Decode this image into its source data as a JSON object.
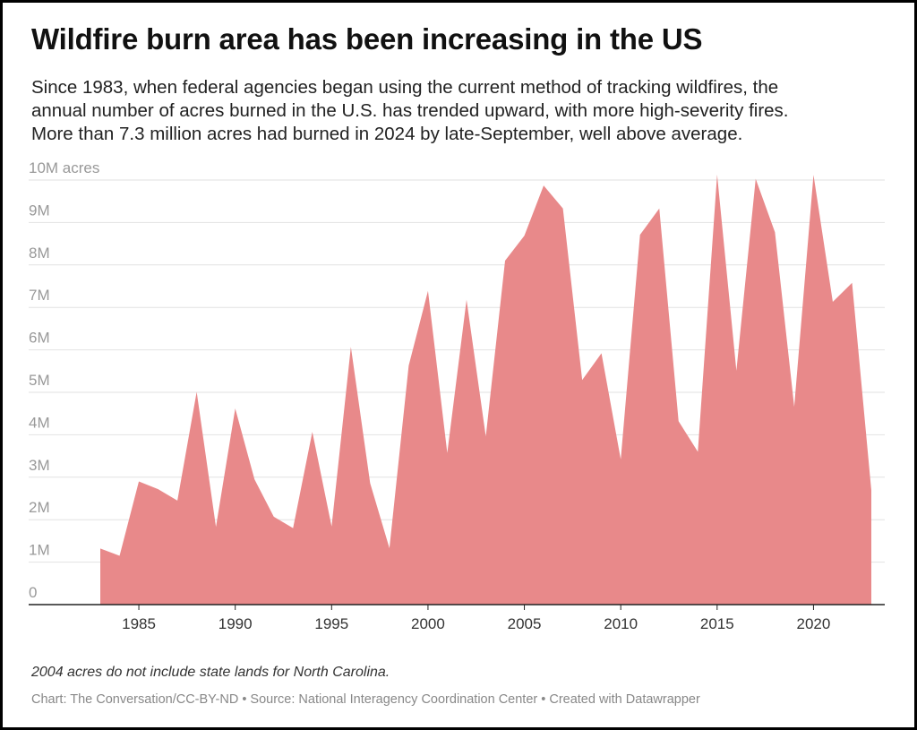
{
  "title": "Wildfire burn area has been increasing in the US",
  "subtitle_lines": [
    "Since 1983, when federal agencies began using the current method of tracking wildfires, the",
    "annual number of acres burned in the U.S. has trended upward, with more high-severity fires.",
    "More than 7.3 million acres had burned in 2024 by late-September, well above average."
  ],
  "note": "2004 acres do not include state lands for North Carolina.",
  "credit": "Chart: The Conversation/CC-BY-ND • Source: National Interagency Coordination Center • Created with Datawrapper",
  "colors": {
    "area": "#e8898a",
    "grid": "#e2e2e2",
    "axis": "#222222",
    "tick_text": "#999999",
    "x_tick_text": "#333333"
  },
  "chart_data": {
    "type": "area",
    "x": [
      1983,
      1984,
      1985,
      1986,
      1987,
      1988,
      1989,
      1990,
      1991,
      1992,
      1993,
      1994,
      1995,
      1996,
      1997,
      1998,
      1999,
      2000,
      2001,
      2002,
      2003,
      2004,
      2005,
      2006,
      2007,
      2008,
      2009,
      2010,
      2011,
      2012,
      2013,
      2014,
      2015,
      2016,
      2017,
      2018,
      2019,
      2020,
      2021,
      2022,
      2023
    ],
    "values": [
      1.32,
      1.15,
      2.9,
      2.72,
      2.45,
      5.01,
      1.83,
      4.62,
      2.95,
      2.07,
      1.8,
      4.07,
      1.84,
      6.07,
      2.86,
      1.33,
      5.63,
      7.39,
      3.57,
      7.18,
      3.96,
      8.1,
      8.69,
      9.87,
      9.33,
      5.29,
      5.92,
      3.42,
      8.71,
      9.33,
      4.32,
      3.6,
      10.13,
      5.51,
      10.03,
      8.77,
      4.66,
      10.12,
      7.13,
      7.58,
      2.69
    ],
    "value_unit": "million acres",
    "ylim": [
      0,
      10
    ],
    "xlim": [
      1983,
      2023
    ],
    "y_ticks": [
      {
        "value": 0,
        "label": "0"
      },
      {
        "value": 1,
        "label": "1M"
      },
      {
        "value": 2,
        "label": "2M"
      },
      {
        "value": 3,
        "label": "3M"
      },
      {
        "value": 4,
        "label": "4M"
      },
      {
        "value": 5,
        "label": "5M"
      },
      {
        "value": 6,
        "label": "6M"
      },
      {
        "value": 7,
        "label": "7M"
      },
      {
        "value": 8,
        "label": "8M"
      },
      {
        "value": 9,
        "label": "9M"
      },
      {
        "value": 10,
        "label": "10M acres"
      }
    ],
    "x_ticks": [
      {
        "value": 1985,
        "label": "1985"
      },
      {
        "value": 1990,
        "label": "1990"
      },
      {
        "value": 1995,
        "label": "1995"
      },
      {
        "value": 2000,
        "label": "2000"
      },
      {
        "value": 2005,
        "label": "2005"
      },
      {
        "value": 2010,
        "label": "2010"
      },
      {
        "value": 2015,
        "label": "2015"
      },
      {
        "value": 2020,
        "label": "2020"
      }
    ],
    "grid": true,
    "legend": "none"
  }
}
